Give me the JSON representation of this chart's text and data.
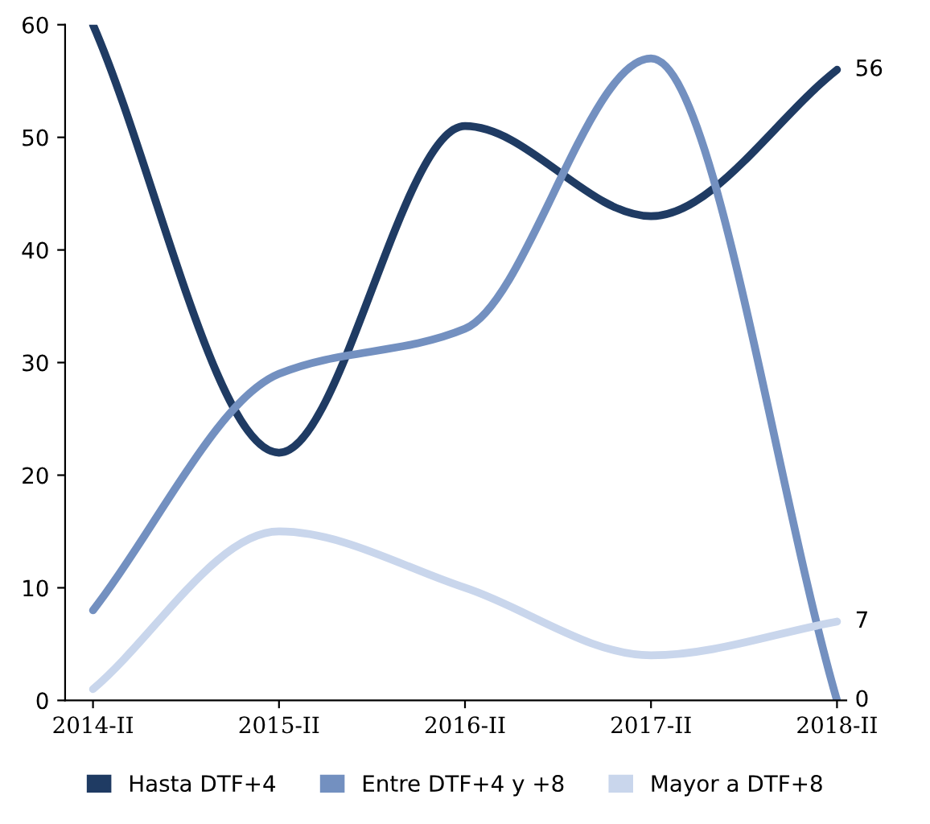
{
  "chart_data": {
    "type": "line",
    "categories": [
      "2014-II",
      "2015-II",
      "2016-II",
      "2017-II",
      "2018-II"
    ],
    "series": [
      {
        "name": "Hasta DTF+4",
        "color": "#1f3b63",
        "values": [
          60,
          22,
          51,
          43,
          56
        ],
        "value_labels": [
          null,
          null,
          null,
          null,
          "56"
        ]
      },
      {
        "name": "Entre DTF+4 y +8",
        "color": "#7390c0",
        "values": [
          8,
          29,
          33,
          57,
          0
        ],
        "value_labels": [
          null,
          null,
          null,
          null,
          "0"
        ]
      },
      {
        "name": "Mayor a DTF+8",
        "color": "#c9d6ec",
        "values": [
          1,
          15,
          10,
          4,
          7
        ],
        "value_labels": [
          null,
          null,
          null,
          null,
          "7"
        ]
      }
    ],
    "ylim": [
      0,
      60
    ],
    "yticks": [
      0,
      10,
      20,
      30,
      40,
      50,
      60
    ],
    "grid": false,
    "legend": "bottom",
    "marker": "none",
    "line_style": "solid"
  }
}
